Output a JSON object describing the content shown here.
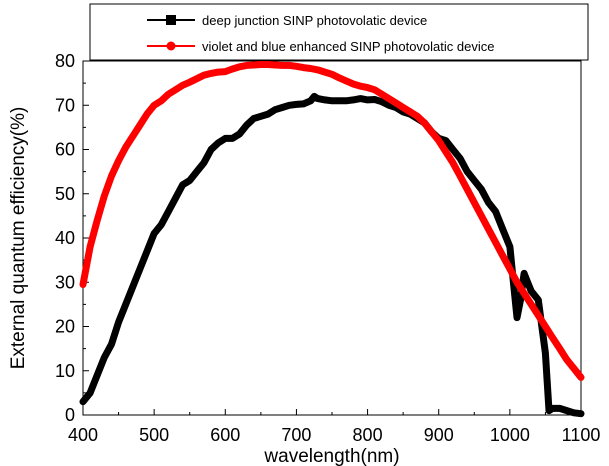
{
  "chart_data": {
    "type": "line",
    "xlabel": "wavelength(nm)",
    "ylabel": "External quantum efficiency(%)",
    "xlim": [
      400,
      1100
    ],
    "ylim": [
      0,
      80
    ],
    "xticks": [
      400,
      500,
      600,
      700,
      800,
      900,
      1000,
      1100
    ],
    "yticks": [
      0,
      10,
      20,
      30,
      40,
      50,
      60,
      70,
      80
    ],
    "grid": false,
    "legend_position": "top",
    "series": [
      {
        "name": "deep junction SINP photovolatic device",
        "color": "#000000",
        "marker": "square",
        "x": [
          400,
          410,
          420,
          430,
          440,
          450,
          460,
          470,
          480,
          490,
          500,
          510,
          520,
          530,
          540,
          550,
          560,
          570,
          580,
          590,
          600,
          610,
          620,
          630,
          640,
          650,
          660,
          670,
          680,
          690,
          700,
          710,
          720,
          725,
          730,
          740,
          750,
          760,
          770,
          780,
          790,
          800,
          810,
          820,
          830,
          840,
          850,
          860,
          870,
          880,
          890,
          900,
          910,
          920,
          930,
          940,
          950,
          960,
          970,
          980,
          990,
          1000,
          1005,
          1010,
          1015,
          1020,
          1025,
          1030,
          1040,
          1050,
          1055,
          1060,
          1070,
          1080,
          1090,
          1100
        ],
        "y": [
          3,
          5,
          9,
          13,
          16,
          21,
          25,
          29,
          33,
          37,
          41,
          43,
          46,
          49,
          52,
          53,
          55,
          57,
          60,
          61.5,
          62.5,
          62.5,
          63.5,
          65.5,
          67,
          67.5,
          68,
          69,
          69.5,
          70,
          70.2,
          70.3,
          71,
          72,
          71.5,
          71.2,
          71,
          71,
          71,
          71.2,
          71.5,
          71.2,
          71.3,
          70.8,
          70,
          69.5,
          68.5,
          68,
          67,
          66,
          64,
          62.5,
          62,
          60,
          58,
          55,
          53,
          51,
          48,
          46,
          42,
          38,
          30,
          22,
          26,
          32,
          30,
          28,
          26,
          14,
          1,
          1.5,
          1.5,
          1,
          0.5,
          0.3
        ]
      },
      {
        "name": "violet and blue enhanced SINP photovolatic device",
        "color": "#ff0000",
        "marker": "circle",
        "x": [
          400,
          410,
          420,
          430,
          440,
          450,
          460,
          470,
          480,
          490,
          500,
          510,
          520,
          530,
          540,
          550,
          560,
          570,
          580,
          590,
          600,
          610,
          620,
          630,
          640,
          650,
          660,
          670,
          680,
          690,
          700,
          710,
          720,
          730,
          740,
          750,
          760,
          770,
          780,
          790,
          800,
          810,
          820,
          830,
          840,
          850,
          860,
          870,
          880,
          890,
          900,
          910,
          920,
          930,
          940,
          950,
          960,
          970,
          980,
          990,
          1000,
          1010,
          1020,
          1030,
          1040,
          1050,
          1060,
          1070,
          1080,
          1090,
          1100
        ],
        "y": [
          29.5,
          38,
          44,
          49.5,
          54,
          57.5,
          60.5,
          63,
          65.5,
          68,
          70,
          71,
          72.5,
          73.5,
          74.5,
          75.2,
          76,
          76.8,
          77.2,
          77.5,
          77.6,
          78.2,
          78.7,
          79,
          79.1,
          79.2,
          79.2,
          79.1,
          79,
          79,
          78.8,
          78.5,
          78.3,
          78,
          77.5,
          77,
          76.2,
          75.5,
          74.8,
          74.3,
          74,
          73.5,
          72.5,
          71.5,
          70.5,
          69.5,
          68.5,
          67.5,
          66,
          64,
          62,
          59.5,
          57,
          54,
          51,
          48,
          45,
          42,
          39,
          36,
          33,
          30,
          27.5,
          25,
          22.5,
          20,
          17.5,
          15,
          12.5,
          10.5,
          8.5
        ]
      }
    ]
  }
}
